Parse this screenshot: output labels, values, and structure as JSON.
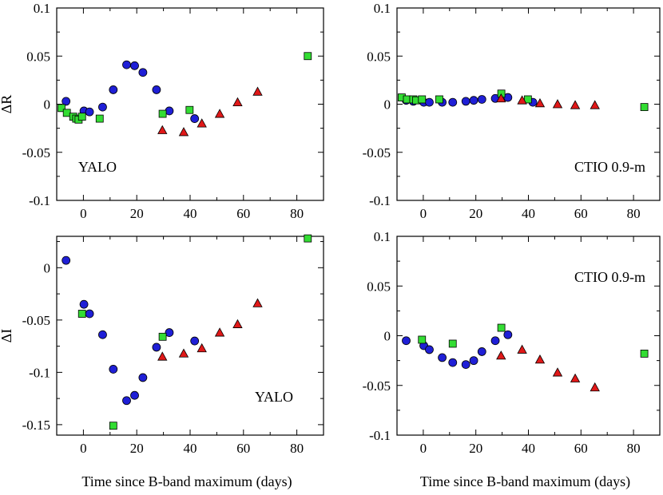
{
  "chart_data": [
    {
      "id": "top-left",
      "type": "scatter",
      "ylabel": "ΔR",
      "xlabel": "",
      "annotation": "YALO",
      "xlim": [
        -10,
        90
      ],
      "ylim": [
        -0.1,
        0.1
      ],
      "xticks": [
        0,
        20,
        40,
        60,
        80
      ],
      "yticks": [
        -0.1,
        -0.05,
        0,
        0.05,
        0.1
      ],
      "ytick_labels": [
        "-0.1",
        "-0.05",
        "0",
        "0.05",
        "0.1"
      ],
      "xtick_labels": [
        "0",
        "20",
        "40",
        "60",
        "80"
      ],
      "series": [
        {
          "marker": "circle",
          "color": "#1f1fd6",
          "x": [
            -6.5,
            0.2,
            2.3,
            7.2,
            11.2,
            16.2,
            19.2,
            22.3,
            27.4,
            32.2,
            41.7
          ],
          "y": [
            0.003,
            -0.007,
            -0.008,
            -0.003,
            0.015,
            0.041,
            0.04,
            0.033,
            0.015,
            -0.007,
            -0.015
          ]
        },
        {
          "marker": "square",
          "color": "#33dd33",
          "x": [
            -8.2,
            -6.2,
            -3.8,
            -2.7,
            -1.8,
            -0.5,
            6.1,
            29.7,
            39.8,
            84.1
          ],
          "y": [
            -0.004,
            -0.009,
            -0.013,
            -0.015,
            -0.016,
            -0.013,
            -0.015,
            -0.01,
            -0.006,
            0.05
          ]
        },
        {
          "marker": "triangle",
          "color": "#e01818",
          "x": [
            29.6,
            37.6,
            44.4,
            51.1,
            57.8,
            65.3
          ],
          "y": [
            -0.027,
            -0.029,
            -0.02,
            -0.01,
            0.002,
            0.013
          ]
        }
      ]
    },
    {
      "id": "top-right",
      "type": "scatter",
      "ylabel": "",
      "xlabel": "",
      "annotation": "CTIO 0.9-m",
      "xlim": [
        -10,
        90
      ],
      "ylim": [
        -0.1,
        0.1
      ],
      "xticks": [
        0,
        20,
        40,
        60,
        80
      ],
      "yticks": [
        -0.1,
        -0.05,
        0,
        0.05,
        0.1
      ],
      "ytick_labels": [
        "-0.1",
        "-0.05",
        "0",
        "0.05",
        "0.1"
      ],
      "xtick_labels": [
        "0",
        "20",
        "40",
        "60",
        "80"
      ],
      "series": [
        {
          "marker": "circle",
          "color": "#1f1fd6",
          "x": [
            -6.5,
            -3.8,
            0.2,
            2.3,
            7.2,
            11.2,
            16.2,
            19.2,
            22.3,
            27.4,
            32.2,
            41.7
          ],
          "y": [
            0.004,
            0.003,
            0.002,
            0.002,
            0.002,
            0.002,
            0.003,
            0.004,
            0.005,
            0.006,
            0.007,
            0.002
          ]
        },
        {
          "marker": "square",
          "color": "#33dd33",
          "x": [
            -8.2,
            -6.2,
            -3.8,
            -2.7,
            -0.5,
            6.1,
            29.7,
            39.8,
            84.1
          ],
          "y": [
            0.007,
            0.005,
            0.005,
            0.004,
            0.005,
            0.005,
            0.011,
            0.005,
            -0.003
          ]
        },
        {
          "marker": "triangle",
          "color": "#e01818",
          "x": [
            29.6,
            37.6,
            44.4,
            51.1,
            57.8,
            65.3
          ],
          "y": [
            0.006,
            0.004,
            0.001,
            0.0,
            -0.001,
            -0.001
          ]
        }
      ]
    },
    {
      "id": "bottom-left",
      "type": "scatter",
      "ylabel": "ΔI",
      "xlabel": "Time since B-band maximum (days)",
      "annotation": "YALO",
      "xlim": [
        -10,
        90
      ],
      "ylim": [
        -0.16,
        0.03
      ],
      "xticks": [
        0,
        20,
        40,
        60,
        80
      ],
      "yticks": [
        -0.15,
        -0.1,
        -0.05,
        0
      ],
      "ytick_labels": [
        "-0.15",
        "-0.1",
        "-0.05",
        "0"
      ],
      "xtick_labels": [
        "0",
        "20",
        "40",
        "60",
        "80"
      ],
      "series": [
        {
          "marker": "circle",
          "color": "#1f1fd6",
          "x": [
            -6.5,
            0.2,
            2.3,
            7.2,
            11.2,
            16.2,
            19.2,
            22.3,
            27.4,
            32.2,
            41.7
          ],
          "y": [
            0.007,
            -0.035,
            -0.044,
            -0.064,
            -0.097,
            -0.127,
            -0.122,
            -0.105,
            -0.076,
            -0.062,
            -0.07
          ]
        },
        {
          "marker": "square",
          "color": "#33dd33",
          "x": [
            -0.5,
            11.2,
            29.7,
            84.1
          ],
          "y": [
            -0.044,
            -0.151,
            -0.066,
            0.028
          ]
        },
        {
          "marker": "triangle",
          "color": "#e01818",
          "x": [
            29.6,
            37.6,
            44.4,
            51.1,
            57.8,
            65.3
          ],
          "y": [
            -0.085,
            -0.082,
            -0.077,
            -0.062,
            -0.054,
            -0.034
          ]
        }
      ]
    },
    {
      "id": "bottom-right",
      "type": "scatter",
      "ylabel": "",
      "xlabel": "Time since B-band maximum (days)",
      "annotation": "CTIO 0.9-m",
      "xlim": [
        -10,
        90
      ],
      "ylim": [
        -0.1,
        0.1
      ],
      "xticks": [
        0,
        20,
        40,
        60,
        80
      ],
      "yticks": [
        -0.1,
        -0.05,
        0,
        0.05,
        0.1
      ],
      "ytick_labels": [
        "-0.1",
        "-0.05",
        "0",
        "0.05",
        "0.1"
      ],
      "xtick_labels": [
        "0",
        "20",
        "40",
        "60",
        "80"
      ],
      "series": [
        {
          "marker": "circle",
          "color": "#1f1fd6",
          "x": [
            -6.5,
            0.2,
            2.3,
            7.2,
            11.2,
            16.2,
            19.2,
            22.3,
            27.4,
            32.2
          ],
          "y": [
            -0.005,
            -0.01,
            -0.014,
            -0.022,
            -0.027,
            -0.029,
            -0.025,
            -0.016,
            -0.005,
            0.001
          ]
        },
        {
          "marker": "square",
          "color": "#33dd33",
          "x": [
            -0.5,
            11.2,
            29.7,
            84.1
          ],
          "y": [
            -0.004,
            -0.008,
            0.008,
            -0.018
          ]
        },
        {
          "marker": "triangle",
          "color": "#e01818",
          "x": [
            29.6,
            37.6,
            44.4,
            51.1,
            57.8,
            65.3
          ],
          "y": [
            -0.02,
            -0.014,
            -0.024,
            -0.037,
            -0.043,
            -0.052
          ]
        }
      ]
    }
  ]
}
